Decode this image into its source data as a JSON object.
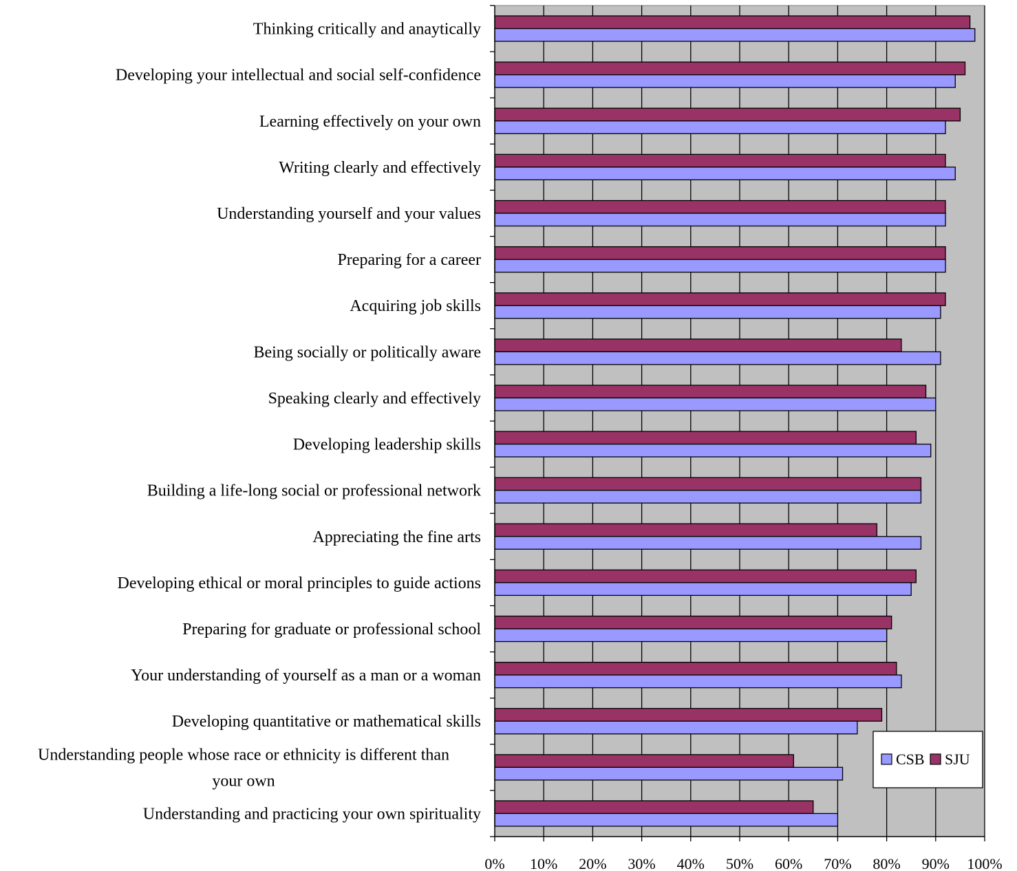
{
  "chart_data": {
    "type": "bar",
    "orientation": "horizontal",
    "title": "",
    "xlabel": "",
    "ylabel": "",
    "xlim": [
      0,
      100
    ],
    "x_ticks": [
      "0%",
      "10%",
      "20%",
      "30%",
      "40%",
      "50%",
      "60%",
      "70%",
      "80%",
      "90%",
      "100%"
    ],
    "grid": "vertical",
    "plot_background": "#c0c0c0",
    "legend": {
      "placement": "bottom-right",
      "entries": [
        "CSB",
        "SJU"
      ]
    },
    "categories": [
      [
        "Thinking critically and anaytically"
      ],
      [
        "Developing your intellectual and social self-confidence"
      ],
      [
        "Learning effectively on your own"
      ],
      [
        "Writing clearly and effectively"
      ],
      [
        "Understanding yourself and your values"
      ],
      [
        "Preparing for a career"
      ],
      [
        "Acquiring job skills"
      ],
      [
        "Being socially or politically aware"
      ],
      [
        "Speaking clearly and effectively"
      ],
      [
        "Developing leadership skills"
      ],
      [
        "Building a life-long social or professional network"
      ],
      [
        "Appreciating the fine arts"
      ],
      [
        "Developing ethical or moral principles to guide actions"
      ],
      [
        "Preparing for graduate or professional school"
      ],
      [
        "Your understanding of yourself as a man or a woman"
      ],
      [
        "Developing quantitative or mathematical skills"
      ],
      [
        "Understanding people whose race or ethnicity is different than",
        "your own"
      ],
      [
        "Understanding and practicing your own spirituality"
      ]
    ],
    "series": [
      {
        "name": "CSB",
        "color": "#9999ff",
        "values": [
          98,
          94,
          92,
          94,
          92,
          92,
          91,
          91,
          90,
          89,
          87,
          87,
          85,
          80,
          83,
          74,
          71,
          70
        ]
      },
      {
        "name": "SJU",
        "color": "#993366",
        "values": [
          97,
          96,
          95,
          92,
          92,
          92,
          92,
          83,
          88,
          86,
          87,
          78,
          86,
          81,
          82,
          79,
          61,
          65
        ]
      }
    ]
  }
}
